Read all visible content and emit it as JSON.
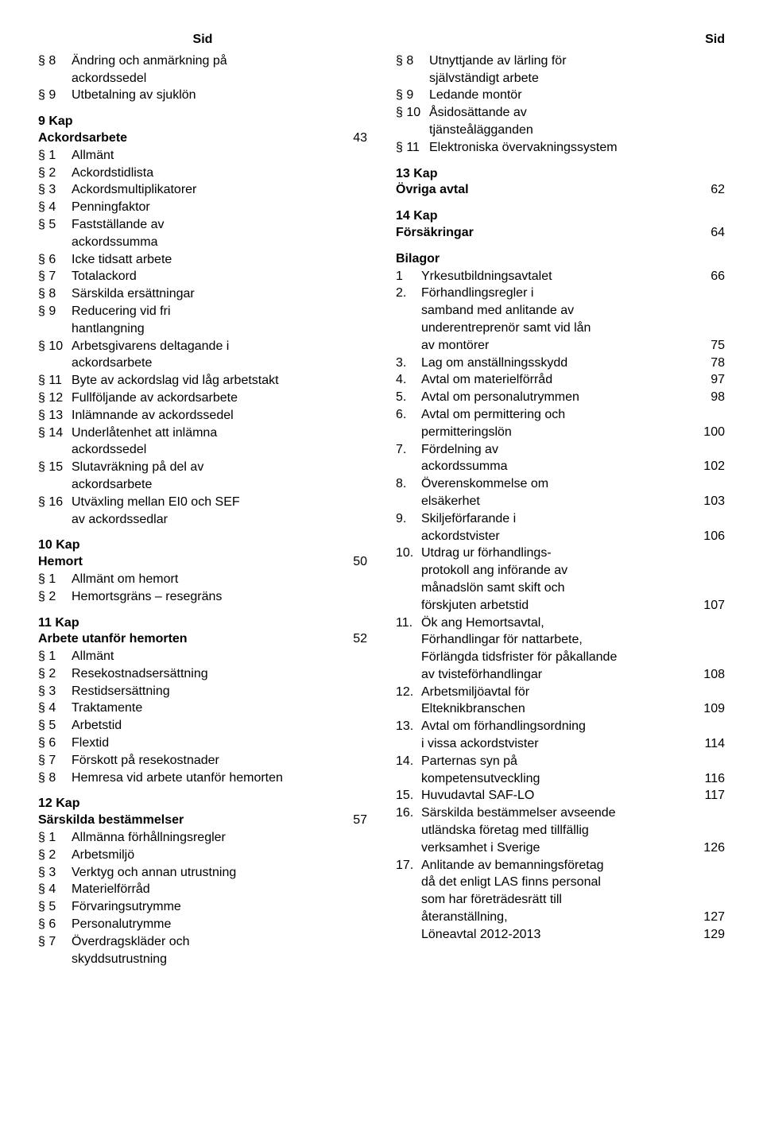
{
  "header": {
    "left": "Sid",
    "right": "Sid"
  },
  "left": {
    "pre_section": [
      {
        "num": "§ 8",
        "text": "Ändring och anmärkning på"
      },
      {
        "cont": "ackordssedel"
      },
      {
        "num": "§ 9",
        "text": "Utbetalning av sjuklön"
      }
    ],
    "sections": [
      {
        "chapter": "9 Kap",
        "title": "Ackordsarbete",
        "page": "43",
        "items": [
          {
            "num": "§ 1",
            "text": "Allmänt"
          },
          {
            "num": "§ 2",
            "text": "Ackordstidlista"
          },
          {
            "num": "§ 3",
            "text": "Ackordsmultiplikatorer"
          },
          {
            "num": "§ 4",
            "text": "Penningfaktor"
          },
          {
            "num": "§ 5",
            "text": "Fastställande av"
          },
          {
            "cont": "ackordssumma"
          },
          {
            "num": "§ 6",
            "text": "Icke tidsatt arbete"
          },
          {
            "num": "§ 7",
            "text": "Totalackord"
          },
          {
            "num": "§ 8",
            "text": "Särskilda ersättningar"
          },
          {
            "num": "§ 9",
            "text": "Reducering vid fri"
          },
          {
            "cont": "hantlangning"
          },
          {
            "num": "§ 10",
            "text": "Arbetsgivarens deltagande i"
          },
          {
            "cont": "ackordsarbete"
          },
          {
            "num": "§ 11",
            "text": "Byte av ackordslag vid låg arbetstakt"
          },
          {
            "num": "§ 12",
            "text": "Fullföljande av ackordsarbete"
          },
          {
            "num": "§ 13",
            "text": "Inlämnande av ackordssedel"
          },
          {
            "num": "§ 14",
            "text": "Underlåtenhet att inlämna"
          },
          {
            "cont": "ackordssedel"
          },
          {
            "num": "§ 15",
            "text": "Slutavräkning på del av"
          },
          {
            "cont": "ackordsarbete"
          },
          {
            "num": "§ 16",
            "text": "Utväxling mellan EI0 och SEF"
          },
          {
            "cont": "av ackordssedlar"
          }
        ]
      },
      {
        "chapter": "10 Kap",
        "title": "Hemort",
        "page": "50",
        "items": [
          {
            "num": "§ 1",
            "text": "Allmänt om hemort"
          },
          {
            "num": "§ 2",
            "text": "Hemortsgräns – resegräns"
          }
        ]
      },
      {
        "chapter": "11  Kap",
        "title": "Arbete utanför hemorten",
        "page": "52",
        "items": [
          {
            "num": "§ 1",
            "text": "Allmänt"
          },
          {
            "num": "§ 2",
            "text": "Resekostnadsersättning"
          },
          {
            "num": "§ 3",
            "text": "Restidsersättning"
          },
          {
            "num": "§ 4",
            "text": "Traktamente"
          },
          {
            "num": "§ 5",
            "text": "Arbetstid"
          },
          {
            "num": "§ 6",
            "text": "Flextid"
          },
          {
            "num": "§ 7",
            "text": "Förskott på resekostnader"
          },
          {
            "num": "§ 8",
            "text": "Hemresa vid arbete utanför hemorten"
          }
        ]
      },
      {
        "chapter": "12 Kap",
        "title": "Särskilda bestämmelser",
        "page": "57",
        "items": [
          {
            "num": "§ 1",
            "text": "Allmänna förhållningsregler"
          },
          {
            "num": "§ 2",
            "text": "Arbetsmiljö"
          },
          {
            "num": "§ 3",
            "text": "Verktyg och annan utrustning"
          },
          {
            "num": "§ 4",
            "text": "Materielförråd"
          },
          {
            "num": "§ 5",
            "text": "Förvaringsutrymme"
          },
          {
            "num": "§ 6",
            "text": "Personalutrymme"
          },
          {
            "num": "§ 7",
            "text": "Överdragskläder och"
          },
          {
            "cont": "skyddsutrustning"
          }
        ]
      }
    ]
  },
  "right": {
    "pre_section": [
      {
        "num": "§ 8",
        "text": "Utnyttjande av lärling för"
      },
      {
        "cont": "självständigt arbete"
      },
      {
        "num": "§ 9",
        "text": "Ledande montör"
      },
      {
        "num": "§ 10",
        "text": "Åsidosättande av"
      },
      {
        "cont": "tjänsteålägganden"
      },
      {
        "num": "§ 11",
        "text": "Elektroniska övervakningssystem"
      }
    ],
    "sections": [
      {
        "chapter": "13 Kap",
        "title": "Övriga avtal",
        "page": "62"
      },
      {
        "chapter": "14 Kap",
        "title": "Försäkringar",
        "page": "64"
      }
    ],
    "bilagor_title": "Bilagor",
    "bilagor": [
      {
        "num": "1",
        "rows": [
          {
            "text": "Yrkesutbildningsavtalet",
            "page": "66"
          }
        ]
      },
      {
        "num": "2.",
        "rows": [
          {
            "text": "Förhandlingsregler i"
          },
          {
            "text": "samband med anlitande av"
          },
          {
            "text": "underentreprenör samt vid lån"
          },
          {
            "text": "av montörer",
            "page": "75"
          }
        ]
      },
      {
        "num": "3.",
        "rows": [
          {
            "text": "Lag om anställningsskydd",
            "page": "78"
          }
        ]
      },
      {
        "num": "4.",
        "rows": [
          {
            "text": "Avtal om materielförråd",
            "page": "97"
          }
        ]
      },
      {
        "num": "5.",
        "rows": [
          {
            "text": "Avtal om personalutrymmen",
            "page": "98"
          }
        ]
      },
      {
        "num": "6.",
        "rows": [
          {
            "text": "Avtal om permittering och"
          },
          {
            "text": "permitteringslön",
            "page": "100"
          }
        ]
      },
      {
        "num": "7.",
        "rows": [
          {
            "text": "Fördelning av"
          },
          {
            "text": "ackordssumma",
            "page": "102"
          }
        ]
      },
      {
        "num": "8.",
        "rows": [
          {
            "text": "Överenskommelse om"
          },
          {
            "text": "elsäkerhet",
            "page": "103"
          }
        ]
      },
      {
        "num": "9.",
        "rows": [
          {
            "text": "Skiljeförfarande i"
          },
          {
            "text": "ackordstvister",
            "page": "106"
          }
        ]
      },
      {
        "num": "10.",
        "rows": [
          {
            "text": "Utdrag ur förhandlings-"
          },
          {
            "text": "protokoll ang införande av"
          },
          {
            "text": "månadslön samt skift och"
          },
          {
            "text": "förskjuten arbetstid",
            "page": "107"
          }
        ]
      },
      {
        "num": "11.",
        "rows": [
          {
            "text": "Ök ang Hemortsavtal,"
          },
          {
            "text": "Förhandlingar för nattarbete,"
          },
          {
            "text": "Förlängda tidsfrister för påkallande"
          },
          {
            "text": "av tvisteförhandlingar",
            "page": "108"
          }
        ]
      },
      {
        "num": "12.",
        "rows": [
          {
            "text": "Arbetsmiljöavtal för"
          },
          {
            "text": "Elteknikbranschen",
            "page": "109"
          }
        ]
      },
      {
        "num": "13.",
        "rows": [
          {
            "text": "Avtal om förhandlingsordning"
          },
          {
            "text": "i vissa ackordstvister",
            "page": "114"
          }
        ]
      },
      {
        "num": "14.",
        "rows": [
          {
            "text": "Parternas syn på"
          },
          {
            "text": "kompetensutveckling",
            "page": "116"
          }
        ]
      },
      {
        "num": "15.",
        "rows": [
          {
            "text": "Huvudavtal SAF-LO",
            "page": "117"
          }
        ]
      },
      {
        "num": "16.",
        "rows": [
          {
            "text": "Särskilda bestämmelser avseende"
          },
          {
            "text": "utländska företag med tillfällig"
          },
          {
            "text": "verksamhet i Sverige",
            "page": "126"
          }
        ]
      },
      {
        "num": "17.",
        "rows": [
          {
            "text": "Anlitande av bemanningsföretag"
          },
          {
            "text": "då det enligt LAS finns personal"
          },
          {
            "text": "som har företrädesrätt till"
          },
          {
            "text": "återanställning,",
            "page": "127"
          }
        ]
      },
      {
        "num": "",
        "rows": [
          {
            "text": "Löneavtal 2012-2013",
            "page": "129"
          }
        ]
      }
    ]
  }
}
